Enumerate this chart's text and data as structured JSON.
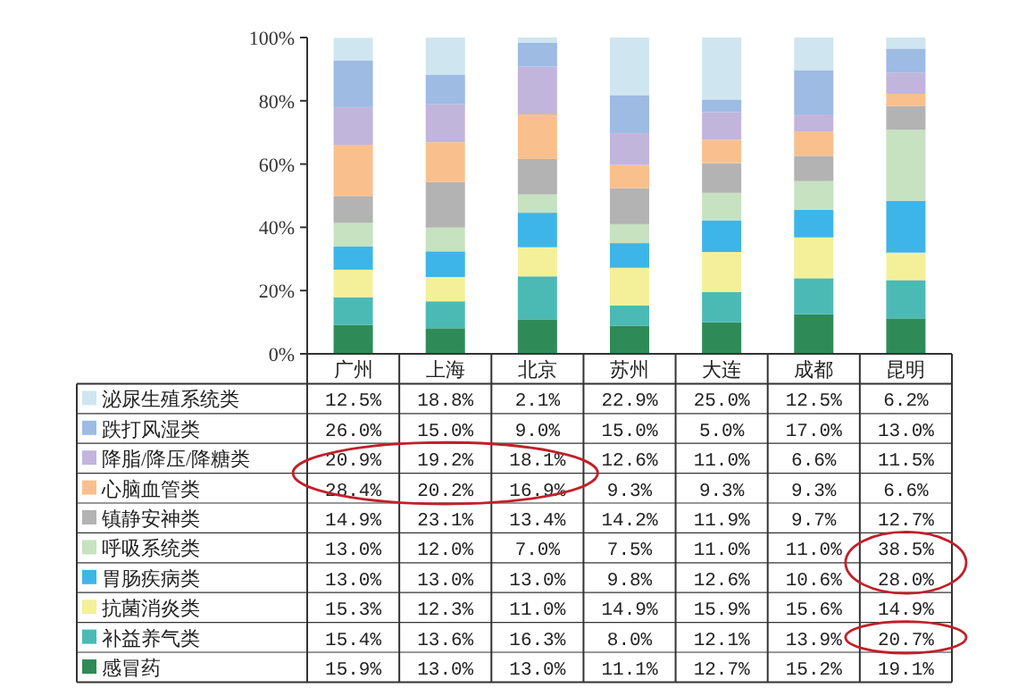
{
  "chart_data": [
    {
      "type": "bar",
      "stacked": true,
      "categories": [
        "广州",
        "上海",
        "北京",
        "苏州",
        "大连",
        "成都",
        "昆明"
      ],
      "ylim": [
        0,
        100
      ],
      "yticks": [
        {
          "value": 0,
          "label": "0%"
        },
        {
          "value": 20,
          "label": "20%"
        },
        {
          "value": 40,
          "label": "40%"
        },
        {
          "value": 60,
          "label": "60%"
        },
        {
          "value": 80,
          "label": "80%"
        },
        {
          "value": 100,
          "label": "100%"
        }
      ],
      "series": [
        {
          "color": "#2e8b57",
          "values": [
            9.1,
            8.1,
            10.9,
            8.9,
            10.0,
            12.5,
            11.2
          ]
        },
        {
          "color": "#4bbab5",
          "values": [
            8.8,
            8.5,
            13.6,
            6.4,
            9.6,
            11.4,
            12.1
          ]
        },
        {
          "color": "#f4f09a",
          "values": [
            8.7,
            7.7,
            9.2,
            11.9,
            12.6,
            12.9,
            8.7
          ]
        },
        {
          "color": "#3eb5e8",
          "values": [
            7.4,
            8.1,
            10.9,
            7.8,
            10.0,
            8.7,
            16.4
          ]
        },
        {
          "color": "#c6e2c0",
          "values": [
            7.4,
            7.5,
            5.8,
            6.0,
            8.7,
            9.1,
            22.5
          ]
        },
        {
          "color": "#b3b3b3",
          "values": [
            8.5,
            14.4,
            11.2,
            11.3,
            9.4,
            8.0,
            7.4
          ]
        },
        {
          "color": "#f9c08e",
          "values": [
            16.2,
            12.6,
            14.1,
            7.4,
            7.4,
            7.7,
            3.9
          ]
        },
        {
          "color": "#c2b5dc",
          "values": [
            11.9,
            12.0,
            15.1,
            10.1,
            8.7,
            5.4,
            6.7
          ]
        },
        {
          "color": "#9dbbe3",
          "values": [
            14.8,
            9.4,
            7.5,
            12.0,
            4.0,
            14.0,
            7.6
          ]
        },
        {
          "color": "#cfe6f0",
          "values": [
            7.1,
            11.7,
            1.7,
            18.2,
            19.6,
            10.3,
            3.5
          ]
        }
      ]
    },
    {
      "type": "other",
      "legend": "bottom",
      "series": [
        {
          "name": "泌尿生殖系统类",
          "color": "#cfe6f0"
        },
        {
          "name": "跌打风湿类",
          "color": "#9dbbe3"
        },
        {
          "name": "降脂/降压/降糖类",
          "color": "#c2b5dc"
        },
        {
          "name": "心脑血管类",
          "color": "#f9c08e"
        },
        {
          "name": "镇静安神类",
          "color": "#b3b3b3"
        },
        {
          "name": "呼吸系统类",
          "color": "#c6e2c0"
        },
        {
          "name": "胃肠疾病类",
          "color": "#3eb5e8"
        },
        {
          "name": "抗菌消炎类",
          "color": "#f4f09a"
        },
        {
          "name": "补益养气类",
          "color": "#4bbab5"
        },
        {
          "name": "感冒药",
          "color": "#2e8b57"
        }
      ],
      "annotations": [
        "12.5%",
        "18.8%",
        "2.1%",
        "22.9%",
        "25.0%",
        "12.5%",
        "6.2%",
        "26.0%",
        "15.0%",
        "9.0%",
        "15.0%",
        "5.0%",
        "17.0%",
        "13.0%",
        "20.9%",
        "19.2%",
        "18.1%",
        "12.6%",
        "11.0%",
        "6.6%",
        "11.5%",
        "28.4%",
        "20.2%",
        "16.9%",
        "9.3%",
        "9.3%",
        "9.3%",
        "6.6%",
        "14.9%",
        "23.1%",
        "13.4%",
        "14.2%",
        "11.9%",
        "9.7%",
        "12.7%",
        "13.0%",
        "12.0%",
        "7.0%",
        "7.5%",
        "11.0%",
        "11.0%",
        "38.5%",
        "13.0%",
        "13.0%",
        "13.0%",
        "9.8%",
        "12.6%",
        "10.6%",
        "28.0%",
        "15.3%",
        "12.3%",
        "11.0%",
        "14.9%",
        "15.9%",
        "15.6%",
        "14.9%",
        "15.4%",
        "13.6%",
        "16.3%",
        "8.0%",
        "12.1%",
        "13.9%",
        "20.7%",
        "15.9%",
        "13.0%",
        "13.0%",
        "11.1%",
        "12.7%",
        "15.2%",
        "19.1%"
      ]
    }
  ]
}
